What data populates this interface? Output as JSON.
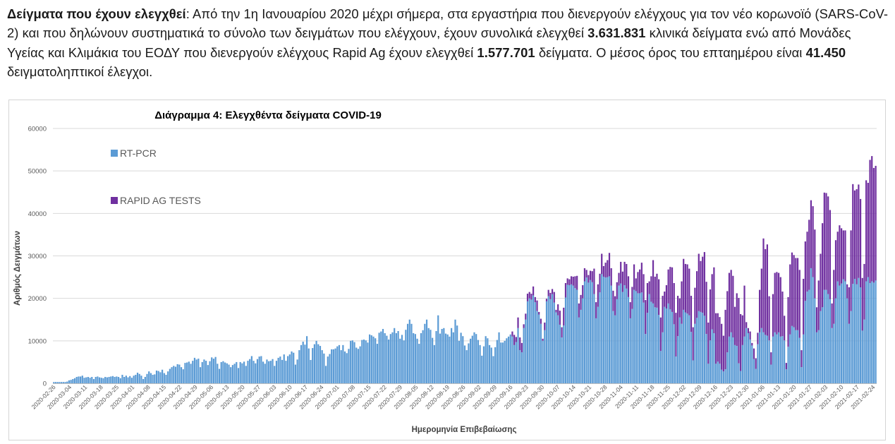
{
  "paragraph": {
    "heading": "Δείγματα που έχουν ελεγχθεί",
    "colon": ": ",
    "part1": "Από την 1η Ιανουαρίου 2020 μέχρι σήμερα, στα εργαστήρια που διενεργούν ελέγχους για τον νέο κορωνοϊό (SARS-CoV-2) και που δηλώνουν συστηματικά το σύνολο των δειγμάτων που ελέγχουν, έχουν συνολικά ελεγχθεί ",
    "pcr_total": "3.631.831",
    "part2": " κλινικά δείγματα ενώ από Μονάδες Υγείας και Κλιμάκια του ΕΟΔΥ που διενεργούν ελέγχους Rapid Ag έχουν ελεγχθεί ",
    "rapid_total": "1.577.701",
    "part3": " δείγματα. Ο μέσος όρος του επταημέρου είναι ",
    "avg7": "41.450",
    "part4": " δειγματοληπτικοί έλεγχοι."
  },
  "colors": {
    "rt_pcr": "#5b9bd5",
    "rapid": "#7030a0",
    "grid": "#d9d9d9",
    "axis_text": "#595959"
  },
  "chart_data": {
    "type": "bar",
    "stacked": true,
    "title": "Διάγραμμα 4: Ελεγχθέντα δείγματα COVID-19",
    "xlabel": "Ημερομηνία Επιβεβαίωσης",
    "ylabel": "Αριθμός Δειγμάτων",
    "ylim": [
      0,
      60000
    ],
    "yticks": [
      0,
      10000,
      20000,
      30000,
      40000,
      50000,
      60000
    ],
    "grid": true,
    "legend_position": "top-left",
    "x_start": "2020-02-26",
    "x_end": "2021-02-26",
    "x_tick_labels": [
      "2020-02-26",
      "2020-03-04",
      "2020-03-11",
      "2020-03-18",
      "2020-03-25",
      "2020-04-01",
      "2020-04-08",
      "2020-04-15",
      "2020-04-22",
      "2020-04-29",
      "2020-05-06",
      "2020-05-13",
      "2020-05-20",
      "2020-05-27",
      "2020-06-03",
      "2020-06-10",
      "2020-06-17",
      "2020-06-24",
      "2020-07-01",
      "2020-07-08",
      "2020-07-15",
      "2020-07-22",
      "2020-07-29",
      "2020-08-05",
      "2020-08-12",
      "2020-08-19",
      "2020-08-26",
      "2020-09-02",
      "2020-09-09",
      "2020-09-16",
      "2020-09-23",
      "2020-09-30",
      "2020-10-07",
      "2020-10-14",
      "2020-10-21",
      "2020-10-28",
      "2020-11-04",
      "2020-11-11",
      "2020-11-18",
      "2020-11-25",
      "2020-12-02",
      "2020-12-09",
      "2020-12-16",
      "2020-12-23",
      "2020-12-30",
      "2021-01-06",
      "2021-01-13",
      "2021-01-20",
      "2021-01-27",
      "2021-02-03",
      "2021-02-10",
      "2021-02-17",
      "2021-02-24"
    ],
    "series": [
      {
        "name": "RT-PCR",
        "values": [
          300,
          300,
          300,
          300,
          300,
          300,
          300,
          400,
          700,
          800,
          1000,
          1200,
          1500,
          1600,
          1600,
          1800,
          1300,
          1400,
          1500,
          1300,
          1500,
          1000,
          1500,
          1600,
          1400,
          1300,
          1200,
          1500,
          1400,
          1500,
          1600,
          1700,
          1500,
          1600,
          1500,
          1200,
          2000,
          1500,
          1800,
          1400,
          1700,
          1300,
          1800,
          2000,
          2500,
          2200,
          1800,
          1000,
          1500,
          2200,
          2800,
          2400,
          2000,
          2100,
          3000,
          2900,
          2600,
          3200,
          2400,
          2000,
          2800,
          3400,
          3800,
          4100,
          3900,
          4500,
          4400,
          3800,
          3300,
          4800,
          4900,
          5100,
          4600,
          5300,
          6000,
          5600,
          5800,
          3800,
          5000,
          5600,
          5300,
          4300,
          5200,
          6100,
          5800,
          6200,
          4600,
          3400,
          5000,
          5200,
          4900,
          4700,
          4400,
          3800,
          4300,
          4600,
          5000,
          3600,
          5000,
          4700,
          5100,
          4100,
          5300,
          5700,
          6400,
          5300,
          4700,
          5700,
          6300,
          6400,
          5100,
          4600,
          5600,
          5200,
          5300,
          5700,
          4100,
          5300,
          6000,
          6300,
          5500,
          6800,
          5300,
          6400,
          6800,
          7500,
          7200,
          4400,
          5600,
          7800,
          9000,
          9800,
          9100,
          11100,
          8200,
          5500,
          8300,
          9200,
          10000,
          9200,
          8800,
          7800,
          7000,
          4100,
          6300,
          6900,
          8000,
          8000,
          8200,
          8700,
          9000,
          7800,
          9000,
          7500,
          7100,
          8100,
          10000,
          10100,
          9700,
          8400,
          8100,
          8700,
          10200,
          10300,
          10100,
          9600,
          11500,
          11300,
          11000,
          10600,
          9300,
          11900,
          12200,
          12800,
          11800,
          11200,
          10300,
          11600,
          12000,
          13000,
          11800,
          12300,
          10500,
          11400,
          10100,
          12600,
          14000,
          15000,
          14000,
          11800,
          11600,
          10500,
          9300,
          11800,
          12500,
          14000,
          15000,
          13000,
          12600,
          10700,
          9000,
          12300,
          16000,
          11700,
          12800,
          13000,
          11700,
          11500,
          11000,
          13000,
          12000,
          15000,
          13600,
          10000,
          11900,
          11100,
          8900,
          7800,
          9400,
          10500,
          11200,
          12000,
          11600,
          10200,
          9000,
          6500,
          8700,
          11100,
          10600,
          9000,
          8400,
          6400,
          8500,
          10200,
          12000,
          9600,
          9600,
          10000,
          10600,
          11000,
          11500,
          11000,
          9000,
          9700,
          13000,
          7800,
          7300,
          13000,
          15000,
          19300,
          20000,
          19700,
          20700,
          19100,
          17000,
          16200,
          14000,
          10000,
          12500,
          19300,
          20500,
          19800,
          21000,
          19000,
          16700,
          16000,
          13800,
          10800,
          13600,
          20200,
          23200,
          23100,
          23300,
          23000,
          22400,
          22000,
          15500,
          17300,
          20000,
          24000,
          24900,
          23700,
          24300,
          23800,
          21000,
          15300,
          18000,
          21400,
          25700,
          25100,
          24900,
          25000,
          25200,
          23000,
          17000,
          16000,
          19800,
          23000,
          23500,
          21500,
          23100,
          22300,
          20300,
          15300,
          17500,
          22000,
          21700,
          21200,
          21200,
          21400,
          19000,
          11600,
          16600,
          21000,
          19200,
          18800,
          17900,
          17800,
          16100,
          7600,
          12000,
          18000,
          17600,
          18800,
          17400,
          16800,
          13900,
          6300,
          11100,
          15500,
          14000,
          17300,
          16700,
          16400,
          16000,
          12100,
          5400,
          14000,
          15400,
          17000,
          16800,
          16600,
          15900,
          11600,
          4600,
          10100,
          12700,
          11800,
          4600,
          5100,
          4600,
          3200,
          2800,
          3300,
          7300,
          11000,
          12000,
          10800,
          9000,
          8800,
          4700,
          2900,
          9000,
          11000,
          13000,
          11800,
          10300,
          8900,
          5700,
          3400,
          9200,
          12000,
          13000,
          12000,
          11400,
          11200,
          10100,
          4400,
          11000,
          12000,
          11500,
          12000,
          11000,
          11100,
          10100,
          3300,
          8600,
          11500,
          13500,
          13200,
          12500,
          12500,
          10700,
          3800,
          11500,
          19400,
          21600,
          22000,
          27100,
          25000,
          20000,
          12000,
          12500,
          17000,
          17900,
          22000,
          22000,
          21000,
          19800,
          13000,
          14000,
          20000,
          24000,
          23000,
          23500,
          24500,
          24000,
          20000,
          14000,
          17000,
          23400,
          24600,
          23300,
          24800,
          22600,
          12400,
          15000,
          24000,
          25000,
          23600,
          24000,
          23700,
          24200
        ]
      },
      {
        "name": "RAPID AG TESTS",
        "values": [
          0,
          0,
          0,
          0,
          0,
          0,
          0,
          0,
          0,
          0,
          0,
          0,
          0,
          0,
          0,
          0,
          0,
          0,
          0,
          0,
          0,
          0,
          0,
          0,
          0,
          0,
          0,
          0,
          0,
          0,
          0,
          0,
          0,
          0,
          0,
          0,
          0,
          0,
          0,
          0,
          0,
          0,
          0,
          0,
          0,
          0,
          0,
          0,
          0,
          0,
          0,
          0,
          0,
          0,
          0,
          0,
          0,
          0,
          0,
          0,
          0,
          0,
          0,
          0,
          0,
          0,
          0,
          0,
          0,
          0,
          0,
          0,
          0,
          0,
          0,
          0,
          0,
          0,
          0,
          0,
          0,
          0,
          0,
          0,
          0,
          0,
          0,
          0,
          0,
          0,
          0,
          0,
          0,
          0,
          0,
          0,
          0,
          0,
          0,
          0,
          0,
          0,
          0,
          0,
          0,
          0,
          0,
          0,
          0,
          0,
          0,
          0,
          0,
          0,
          0,
          0,
          0,
          0,
          0,
          0,
          0,
          0,
          0,
          0,
          0,
          0,
          0,
          0,
          0,
          0,
          0,
          0,
          0,
          0,
          0,
          0,
          0,
          0,
          0,
          0,
          0,
          0,
          0,
          0,
          0,
          0,
          0,
          0,
          0,
          0,
          0,
          0,
          0,
          0,
          0,
          0,
          0,
          0,
          0,
          0,
          0,
          0,
          0,
          0,
          0,
          0,
          0,
          0,
          0,
          0,
          0,
          0,
          0,
          0,
          0,
          0,
          0,
          0,
          0,
          0,
          0,
          0,
          0,
          0,
          0,
          0,
          0,
          0,
          0,
          0,
          0,
          0,
          0,
          0,
          0,
          0,
          0,
          0,
          0,
          0,
          0,
          0,
          0,
          0,
          0,
          0,
          0,
          0,
          0,
          0,
          0,
          0,
          0,
          0,
          0,
          0,
          0,
          0,
          0,
          0,
          0,
          0,
          0,
          0,
          0,
          0,
          0,
          0,
          0,
          0,
          0,
          0,
          0,
          0,
          0,
          0,
          0,
          0,
          0,
          0,
          0,
          1200,
          2400,
          1200,
          2500,
          3000,
          2200,
          900,
          1400,
          1800,
          1500,
          1400,
          2100,
          1200,
          2500,
          600,
          1200,
          500,
          1800,
          600,
          1500,
          1500,
          1200,
          2500,
          600,
          2600,
          3300,
          2400,
          4200,
          3400,
          1500,
          1400,
          1900,
          2100,
          2800,
          3300,
          3300,
          3500,
          3100,
          3100,
          1800,
          1800,
          2200,
          2600,
          6000,
          3800,
          5300,
          4400,
          4800,
          2500,
          3500,
          4000,
          5500,
          4100,
          4800,
          4500,
          4000,
          3000,
          5100,
          4800,
          5500,
          5800,
          4900,
          3800,
          5200,
          6000,
          3000,
          5000,
          5600,
          7000,
          6700,
          8000,
          7000,
          3000,
          6000,
          10200,
          7200,
          8000,
          8400,
          7900,
          8600,
          3600,
          5500,
          8000,
          10000,
          10500,
          9700,
          10300,
          9500,
          4500,
          10000,
          12000,
          11400,
          11600,
          11000,
          8500,
          7800,
          8500,
          11000,
          13500,
          12000,
          13200,
          15000,
          12300,
          9700,
          12000,
          13000,
          15500,
          11900,
          11400,
          11000,
          10800,
          8400,
          14000,
          14400,
          15000,
          14700,
          14500,
          9000,
          12400,
          15400,
          13400,
          7000,
          12000,
          1400,
          1200,
          1900,
          600,
          2500,
          2500,
          2700,
          10000,
          14000,
          22100,
          20200,
          21500,
          10400,
          2900,
          10000,
          14000,
          14700,
          14000,
          14000,
          10500,
          5800,
          1500,
          11700,
          16500,
          17300,
          17000,
          17000,
          17000,
          16000,
          4000,
          13100,
          14000,
          14100,
          16500,
          16000,
          16700,
          16200,
          5900,
          11700,
          13500,
          19800,
          22900,
          22800,
          23000,
          21000,
          5800,
          12700,
          13700,
          11700,
          14200,
          13000,
          11500,
          12000,
          3300,
          8600,
          19000,
          23500,
          20800,
          22400,
          22000,
          20800,
          12400,
          13100,
          23800,
          22200,
          29000,
          29500,
          27000,
          27000,
          23200,
          13400,
          11300,
          15300,
          21900,
          22000,
          21800,
          20000,
          13000,
          14500,
          20700,
          20000,
          30000,
          30000,
          25800,
          27900,
          24000,
          8000,
          13000,
          32000,
          30000,
          26000,
          26100,
          26300,
          21800
        ]
      }
    ]
  }
}
